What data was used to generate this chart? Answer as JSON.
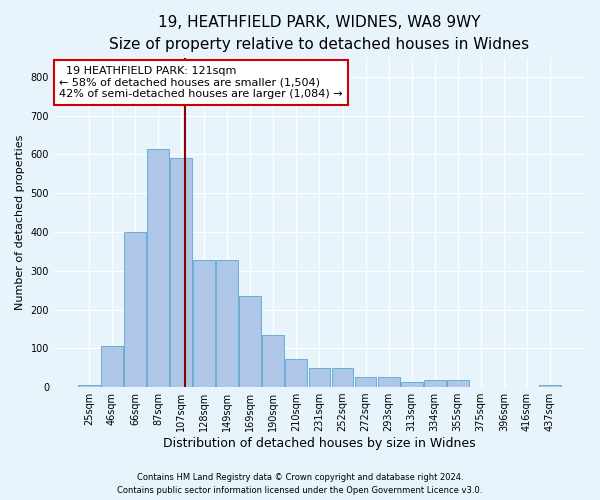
{
  "title1": "19, HEATHFIELD PARK, WIDNES, WA8 9WY",
  "title2": "Size of property relative to detached houses in Widnes",
  "xlabel": "Distribution of detached houses by size in Widnes",
  "ylabel": "Number of detached properties",
  "footer1": "Contains HM Land Registry data © Crown copyright and database right 2024.",
  "footer2": "Contains public sector information licensed under the Open Government Licence v3.0.",
  "annotation_line1": "19 HEATHFIELD PARK: 121sqm",
  "annotation_line2": "← 58% of detached houses are smaller (1,504)",
  "annotation_line3": "42% of semi-detached houses are larger (1,084) →",
  "bar_labels": [
    "25sqm",
    "46sqm",
    "66sqm",
    "87sqm",
    "107sqm",
    "128sqm",
    "149sqm",
    "169sqm",
    "190sqm",
    "210sqm",
    "231sqm",
    "252sqm",
    "272sqm",
    "293sqm",
    "313sqm",
    "334sqm",
    "355sqm",
    "375sqm",
    "396sqm",
    "416sqm",
    "437sqm"
  ],
  "bar_values": [
    5,
    107,
    400,
    615,
    590,
    328,
    328,
    235,
    135,
    73,
    50,
    50,
    25,
    25,
    13,
    17,
    17,
    0,
    0,
    0,
    5
  ],
  "bar_color": "#aec6e8",
  "bar_edge_color": "#6aaed6",
  "vline_color": "#8b0000",
  "background_color": "#e8f4fc",
  "plot_bg_color": "#e8f4fc",
  "ylim": [
    0,
    850
  ],
  "yticks": [
    0,
    100,
    200,
    300,
    400,
    500,
    600,
    700,
    800
  ],
  "annotation_box_color": "white",
  "annotation_box_edge": "#cc0000",
  "title_fontsize": 11,
  "subtitle_fontsize": 9.5,
  "ylabel_fontsize": 8,
  "xlabel_fontsize": 9,
  "tick_fontsize": 7,
  "footer_fontsize": 6,
  "annotation_fontsize": 8
}
